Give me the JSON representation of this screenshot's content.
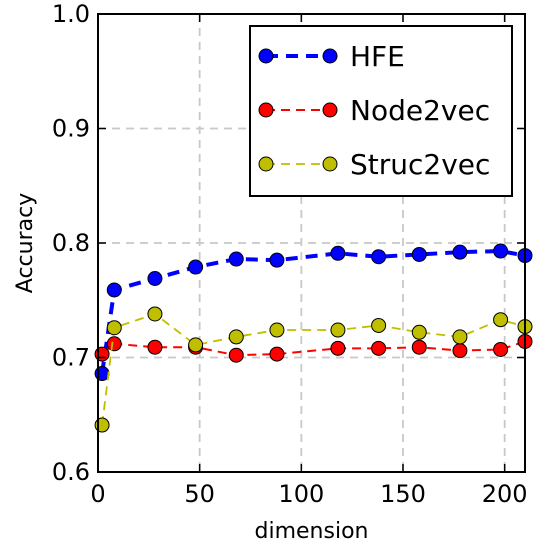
{
  "chart_data": {
    "type": "line",
    "xlabel": "dimension",
    "ylabel": "Accuracy",
    "xlim": [
      0,
      210
    ],
    "ylim": [
      0.6,
      1.0
    ],
    "xticks": [
      0,
      50,
      100,
      150,
      200
    ],
    "xtick_labels": [
      "0",
      "50",
      "100",
      "150",
      "200"
    ],
    "yticks": [
      0.6,
      0.7,
      0.8,
      0.9,
      1.0
    ],
    "ytick_labels": [
      "0.6",
      "0.7",
      "0.8",
      "0.9",
      "1.0"
    ],
    "grid": true,
    "legend": "top-right",
    "series": [
      {
        "name": "HFE",
        "color": "#0000ff",
        "x": [
          2,
          8,
          28,
          48,
          68,
          88,
          118,
          138,
          158,
          178,
          198,
          210
        ],
        "y": [
          0.686,
          0.759,
          0.769,
          0.779,
          0.786,
          0.785,
          0.791,
          0.788,
          0.79,
          0.792,
          0.793,
          0.789
        ]
      },
      {
        "name": "Node2vec",
        "color": "#ff0000",
        "x": [
          2,
          8,
          28,
          48,
          68,
          88,
          118,
          138,
          158,
          178,
          198,
          210
        ],
        "y": [
          0.703,
          0.712,
          0.709,
          0.709,
          0.702,
          0.703,
          0.708,
          0.708,
          0.709,
          0.706,
          0.707,
          0.714
        ]
      },
      {
        "name": "Struc2vec",
        "color": "#bfbf00",
        "x": [
          2,
          8,
          28,
          48,
          68,
          88,
          118,
          138,
          158,
          178,
          198,
          210
        ],
        "y": [
          0.641,
          0.726,
          0.738,
          0.711,
          0.718,
          0.724,
          0.724,
          0.728,
          0.722,
          0.718,
          0.733,
          0.727
        ]
      }
    ]
  }
}
